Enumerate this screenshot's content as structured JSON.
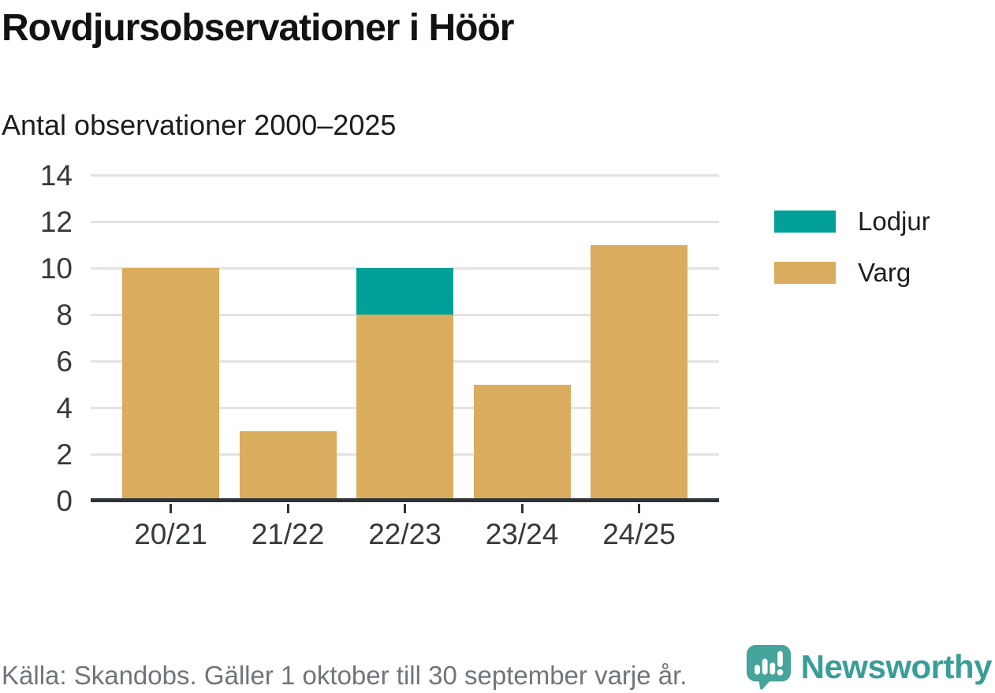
{
  "header": {
    "title": "Rovdjursobservationer i Höör",
    "subtitle": "Antal observationer 2000–2025"
  },
  "footer": {
    "source": "Källa: Skandobs. Gäller 1 oktober till 30 september varje år.",
    "brand": "Newsworthy"
  },
  "colors": {
    "lodjur": "#00a099",
    "varg": "#d9ac5e",
    "axis": "#2e3338",
    "grid": "#e2e2e2",
    "tick_label": "#33393d",
    "source_text": "#6f757a",
    "brand_teal": "#399e97"
  },
  "icons": {
    "logo_icon": "speech-bubble-bar-chart-exclamation"
  },
  "chart_data": {
    "type": "bar",
    "stacked": true,
    "title": "Rovdjursobservationer i Höör",
    "subtitle": "Antal observationer 2000–2025",
    "categories": [
      "20/21",
      "21/22",
      "22/23",
      "23/24",
      "24/25"
    ],
    "series": [
      {
        "name": "Lodjur",
        "color": "#00a099",
        "values": [
          0,
          0,
          2,
          0,
          0
        ]
      },
      {
        "name": "Varg",
        "color": "#d9ac5e",
        "values": [
          10,
          3,
          8,
          5,
          11
        ]
      }
    ],
    "totals": [
      10,
      3,
      10,
      5,
      11
    ],
    "xlabel": "",
    "ylabel": "",
    "ylim": [
      0,
      14
    ],
    "yticks": [
      0,
      2,
      4,
      6,
      8,
      10,
      12,
      14
    ],
    "grid": true,
    "legend_position": "right",
    "source": "Källa: Skandobs. Gäller 1 oktober till 30 september varje år."
  }
}
